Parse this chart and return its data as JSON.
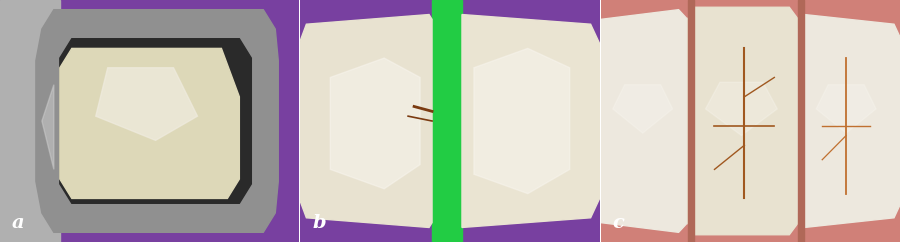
{
  "panels": [
    {
      "label": "a",
      "bg_color": "#7840a0"
    },
    {
      "label": "b",
      "bg_color": "#7840a0"
    },
    {
      "label": "c",
      "bg_color": "#c87060"
    }
  ],
  "fig_width": 9.0,
  "fig_height": 2.42,
  "dpi": 100,
  "label_fontsize": 14,
  "label_color": "white",
  "label_fontweight": "bold"
}
